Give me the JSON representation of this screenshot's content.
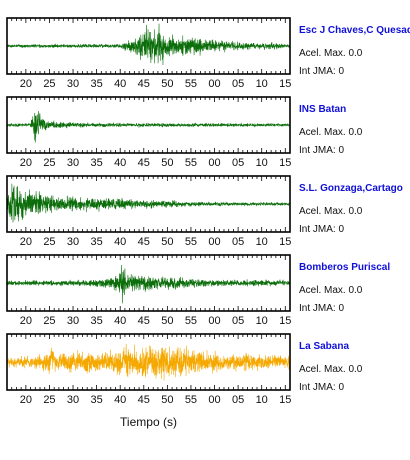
{
  "chart_data": {
    "type": "line",
    "xlabel": "Tiempo (s)",
    "x_tick_labels": [
      "20",
      "25",
      "30",
      "35",
      "40",
      "45",
      "50",
      "55",
      "00",
      "05",
      "10",
      "15"
    ],
    "info_labels": {
      "acel_prefix": "Acel. Max.",
      "int_prefix": "Int JMA:"
    },
    "series": [
      {
        "name": "Esc J Chaves,C Quesada",
        "acel_max": "0.0",
        "int_jma": "0",
        "color": "#0b6e0b",
        "envelope": [
          [
            16,
            0.08
          ],
          [
            40,
            0.1
          ],
          [
            42,
            0.3
          ],
          [
            44,
            0.7
          ],
          [
            46,
            0.9
          ],
          [
            48,
            0.95
          ],
          [
            49,
            1.0
          ],
          [
            50,
            0.75
          ],
          [
            52,
            0.5
          ],
          [
            55,
            0.45
          ],
          [
            58,
            0.4
          ],
          [
            61,
            0.3
          ],
          [
            65,
            0.22
          ],
          [
            68,
            0.15
          ],
          [
            73,
            0.18
          ],
          [
            75,
            0.1
          ],
          [
            76,
            0.08
          ]
        ]
      },
      {
        "name": "INS Batan",
        "acel_max": "0.0",
        "int_jma": "0",
        "color": "#0b6e0b",
        "envelope": [
          [
            16,
            0.08
          ],
          [
            21,
            0.1
          ],
          [
            21.5,
            0.6
          ],
          [
            22,
            1.0
          ],
          [
            22.6,
            0.8
          ],
          [
            23.5,
            0.4
          ],
          [
            25,
            0.2
          ],
          [
            28,
            0.15
          ],
          [
            35,
            0.1
          ],
          [
            76,
            0.08
          ]
        ]
      },
      {
        "name": "S.L. Gonzaga,Cartago",
        "acel_max": "0.0",
        "int_jma": "0",
        "color": "#0b6e0b",
        "envelope": [
          [
            16,
            0.3
          ],
          [
            17,
            1.0
          ],
          [
            19,
            0.9
          ],
          [
            20,
            0.8
          ],
          [
            22,
            0.7
          ],
          [
            24,
            0.45
          ],
          [
            28,
            0.4
          ],
          [
            31,
            0.38
          ],
          [
            35,
            0.32
          ],
          [
            40,
            0.3
          ],
          [
            45,
            0.22
          ],
          [
            50,
            0.18
          ],
          [
            55,
            0.14
          ],
          [
            60,
            0.1
          ],
          [
            76,
            0.08
          ]
        ]
      },
      {
        "name": "Bomberos Puriscal",
        "acel_max": "0.0",
        "int_jma": "0",
        "color": "#0b6e0b",
        "envelope": [
          [
            16,
            0.12
          ],
          [
            30,
            0.14
          ],
          [
            35,
            0.2
          ],
          [
            38,
            0.3
          ],
          [
            40,
            0.6
          ],
          [
            40.5,
            1.0
          ],
          [
            41,
            0.8
          ],
          [
            42,
            0.5
          ],
          [
            45,
            0.4
          ],
          [
            48,
            0.35
          ],
          [
            52,
            0.3
          ],
          [
            55,
            0.25
          ],
          [
            58,
            0.2
          ],
          [
            65,
            0.15
          ],
          [
            72,
            0.18
          ],
          [
            76,
            0.12
          ]
        ]
      },
      {
        "name": "La Sabana",
        "acel_max": "0.0",
        "int_jma": "0",
        "color": "#f5a800",
        "envelope": [
          [
            16,
            0.25
          ],
          [
            22,
            0.3
          ],
          [
            24.5,
            0.6
          ],
          [
            25,
            1.0
          ],
          [
            26,
            0.5
          ],
          [
            29,
            0.55
          ],
          [
            34,
            0.5
          ],
          [
            39,
            0.6
          ],
          [
            41,
            0.9
          ],
          [
            44,
            0.7
          ],
          [
            46,
            0.8
          ],
          [
            49,
            1.0
          ],
          [
            50,
            0.85
          ],
          [
            55,
            0.7
          ],
          [
            60,
            0.5
          ],
          [
            65,
            0.45
          ],
          [
            70,
            0.4
          ],
          [
            76,
            0.35
          ]
        ]
      }
    ]
  }
}
